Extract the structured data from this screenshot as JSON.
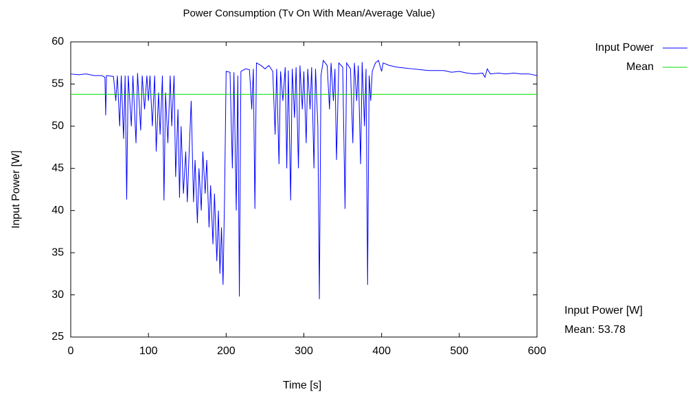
{
  "chart_data": {
    "type": "line",
    "title": "Power Consumption (Tv On With Mean/Average Value)",
    "x_label": "Time [s]",
    "y_label": "Input Power [W]",
    "xlim": [
      0,
      600
    ],
    "xticks": [
      0,
      100,
      200,
      300,
      400,
      500,
      600
    ],
    "ylim": [
      25,
      60
    ],
    "yticks": [
      25,
      30,
      35,
      40,
      45,
      50,
      55,
      60
    ],
    "legend": "top-right",
    "annotations": [
      "Input Power [W]",
      "Mean: 53.78"
    ],
    "series": [
      {
        "name": "Input Power",
        "color": "#0000ff",
        "x": [
          0,
          10,
          20,
          30,
          40,
          44,
          45,
          46,
          55,
          58,
          60,
          63,
          65,
          68,
          70,
          72,
          74,
          78,
          80,
          84,
          86,
          90,
          92,
          95,
          98,
          100,
          102,
          105,
          108,
          110,
          113,
          115,
          118,
          120,
          122,
          125,
          128,
          130,
          133,
          135,
          138,
          140,
          142,
          145,
          148,
          150,
          152,
          155,
          158,
          160,
          163,
          165,
          168,
          170,
          173,
          175,
          178,
          180,
          183,
          185,
          188,
          190,
          192,
          194,
          196,
          198,
          200,
          205,
          208,
          210,
          213,
          215,
          217,
          219,
          225,
          230,
          233,
          235,
          237,
          239,
          245,
          250,
          255,
          260,
          263,
          265,
          268,
          270,
          273,
          276,
          278,
          280,
          283,
          285,
          288,
          290,
          293,
          295,
          298,
          300,
          303,
          305,
          308,
          310,
          313,
          315,
          318,
          320,
          322,
          325,
          330,
          333,
          335,
          338,
          340,
          342,
          345,
          350,
          353,
          355,
          360,
          363,
          365,
          368,
          370,
          373,
          375,
          378,
          380,
          382,
          384,
          386,
          388,
          392,
          396,
          400,
          402,
          410,
          420,
          430,
          440,
          450,
          460,
          470,
          480,
          490,
          500,
          510,
          520,
          530,
          533,
          536,
          540,
          550,
          560,
          570,
          580,
          590,
          600
        ],
        "values": [
          56.2,
          56.1,
          56.2,
          56.0,
          56.0,
          55.8,
          51.3,
          56.0,
          55.9,
          53,
          56,
          50,
          56,
          48.5,
          56,
          41.3,
          56,
          50,
          56,
          48,
          56.3,
          49.5,
          56,
          52,
          56,
          53,
          56,
          50,
          56,
          47,
          54,
          49,
          56,
          41.2,
          54,
          48,
          56,
          50,
          56,
          44,
          52,
          41.5,
          50,
          42,
          47,
          41,
          46,
          53,
          41,
          46,
          38.5,
          45,
          40,
          47,
          42,
          46,
          38,
          43,
          36,
          42,
          34,
          40,
          32.5,
          38,
          31.2,
          42,
          56.5,
          56.4,
          45,
          56.4,
          40,
          56,
          29.8,
          56.5,
          56.8,
          56.7,
          52,
          56.8,
          40.2,
          57.5,
          57.2,
          56.8,
          57.2,
          56.5,
          49,
          56.8,
          45.5,
          56.5,
          53,
          57,
          45,
          56.6,
          41.2,
          56.8,
          51,
          57,
          45,
          57.2,
          52,
          56.5,
          48,
          56.8,
          52,
          57,
          45,
          56.8,
          50,
          29.5,
          56,
          57.8,
          57.2,
          52,
          57.5,
          53,
          56.8,
          46,
          57.5,
          57,
          40.2,
          57.5,
          56.8,
          48,
          57.5,
          53,
          57.2,
          45.5,
          57.6,
          50,
          56.8,
          31.2,
          56,
          53,
          56.5,
          57.5,
          57.8,
          56.5,
          57.5,
          57.2,
          57.0,
          56.9,
          56.8,
          56.7,
          56.6,
          56.6,
          56.6,
          56.4,
          56.5,
          56.3,
          56.2,
          56.3,
          55.8,
          56.8,
          56.2,
          56.3,
          56.2,
          56.3,
          56.2,
          56.2,
          56.0
        ]
      },
      {
        "name": "Mean",
        "color": "#00dd00",
        "x": [
          0,
          600
        ],
        "values": [
          53.78,
          53.78
        ]
      }
    ]
  }
}
